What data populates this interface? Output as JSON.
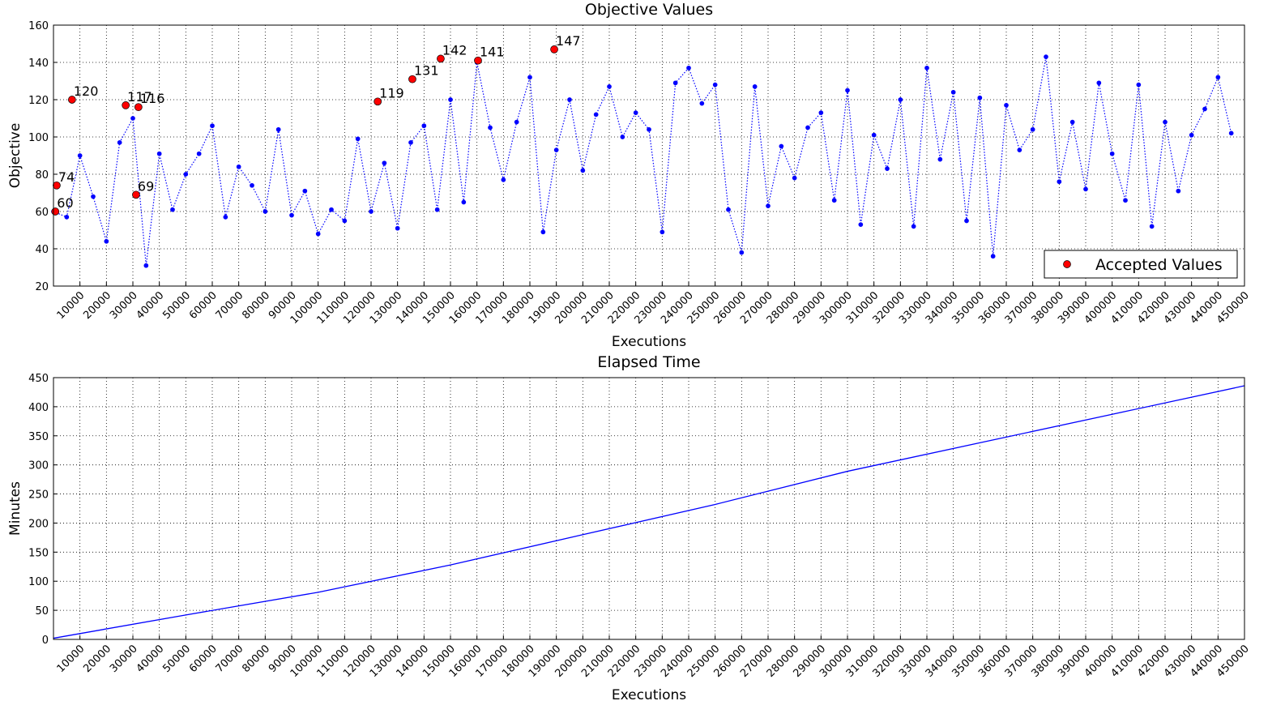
{
  "chart_data": [
    {
      "type": "line",
      "title": "Objective Values",
      "xlabel": "Executions",
      "ylabel": "Objective",
      "xlim": [
        0,
        450000
      ],
      "ylim": [
        20,
        160
      ],
      "xticks": [
        10000,
        20000,
        30000,
        40000,
        50000,
        60000,
        70000,
        80000,
        90000,
        100000,
        110000,
        120000,
        130000,
        140000,
        150000,
        160000,
        170000,
        180000,
        190000,
        200000,
        210000,
        220000,
        230000,
        240000,
        250000,
        260000,
        270000,
        280000,
        290000,
        300000,
        310000,
        320000,
        330000,
        340000,
        350000,
        360000,
        370000,
        380000,
        390000,
        400000,
        410000,
        420000,
        430000,
        440000,
        450000
      ],
      "yticks": [
        20,
        40,
        60,
        80,
        100,
        120,
        140,
        160
      ],
      "grid": true,
      "legend": "lower right",
      "series": [
        {
          "color": "#0000ff",
          "linestyle": "dotted",
          "marker": true,
          "data_labels": false,
          "x": [
            0,
            5000,
            10000,
            15000,
            20000,
            25000,
            30000,
            35000,
            40000,
            45000,
            50000,
            55000,
            60000,
            65000,
            70000,
            75000,
            80000,
            85000,
            90000,
            95000,
            100000,
            105000,
            110000,
            115000,
            120000,
            125000,
            130000,
            135000,
            140000,
            145000,
            150000,
            155000,
            160000,
            165000,
            170000,
            175000,
            180000,
            185000,
            190000,
            195000,
            200000,
            205000,
            210000,
            215000,
            220000,
            225000,
            230000,
            235000,
            240000,
            245000,
            250000,
            255000,
            260000,
            265000,
            270000,
            275000,
            280000,
            285000,
            290000,
            295000,
            300000,
            305000,
            310000,
            315000,
            320000,
            325000,
            330000,
            335000,
            340000,
            345000,
            350000,
            355000,
            360000,
            365000,
            370000,
            375000,
            380000,
            385000,
            390000,
            395000,
            400000,
            405000,
            410000,
            415000,
            420000,
            425000,
            430000,
            435000,
            440000,
            445000
          ],
          "values": [
            60,
            57,
            90,
            68,
            44,
            97,
            110,
            31,
            91,
            61,
            80,
            91,
            106,
            57,
            84,
            74,
            60,
            104,
            58,
            71,
            48,
            61,
            55,
            99,
            60,
            86,
            51,
            97,
            106,
            61,
            120,
            65,
            140,
            105,
            77,
            108,
            132,
            49,
            93,
            120,
            82,
            112,
            127,
            100,
            113,
            104,
            49,
            129,
            137,
            118,
            128,
            61,
            38,
            127,
            63,
            95,
            78,
            105,
            113,
            66,
            125,
            53,
            101,
            83,
            120,
            52,
            137,
            88,
            124,
            55,
            121,
            36,
            117,
            93,
            104,
            143,
            76,
            108,
            72,
            129,
            91,
            66,
            128,
            52,
            108,
            71,
            101,
            115,
            132,
            102
          ]
        },
        {
          "name": "Accepted Values",
          "color": "#ff0000",
          "linestyle": "none",
          "marker": true,
          "data_labels": true,
          "x": [
            700,
            1200,
            7000,
            27300,
            31200,
            32100,
            122500,
            135600,
            146300,
            160400,
            189200
          ],
          "values": [
            60,
            74,
            120,
            117,
            69,
            116,
            119,
            131,
            142,
            141,
            147
          ]
        }
      ]
    },
    {
      "type": "line",
      "title": "Elapsed Time",
      "xlabel": "Executions",
      "ylabel": "Minutes",
      "xlim": [
        0,
        450000
      ],
      "ylim": [
        0,
        450
      ],
      "xticks": [
        10000,
        20000,
        30000,
        40000,
        50000,
        60000,
        70000,
        80000,
        90000,
        100000,
        110000,
        120000,
        130000,
        140000,
        150000,
        160000,
        170000,
        180000,
        190000,
        200000,
        210000,
        220000,
        230000,
        240000,
        250000,
        260000,
        270000,
        280000,
        290000,
        300000,
        310000,
        320000,
        330000,
        340000,
        350000,
        360000,
        370000,
        380000,
        390000,
        400000,
        410000,
        420000,
        430000,
        440000,
        450000
      ],
      "yticks": [
        0,
        50,
        100,
        150,
        200,
        250,
        300,
        350,
        400,
        450
      ],
      "grid": true,
      "series": [
        {
          "color": "#0000ff",
          "linestyle": "solid",
          "marker": false,
          "data_labels": false,
          "x": [
            0,
            50000,
            100000,
            150000,
            200000,
            250000,
            300000,
            350000,
            400000,
            450000
          ],
          "values": [
            2,
            42,
            81,
            128,
            180,
            232,
            289,
            338,
            387,
            436
          ]
        }
      ]
    }
  ]
}
